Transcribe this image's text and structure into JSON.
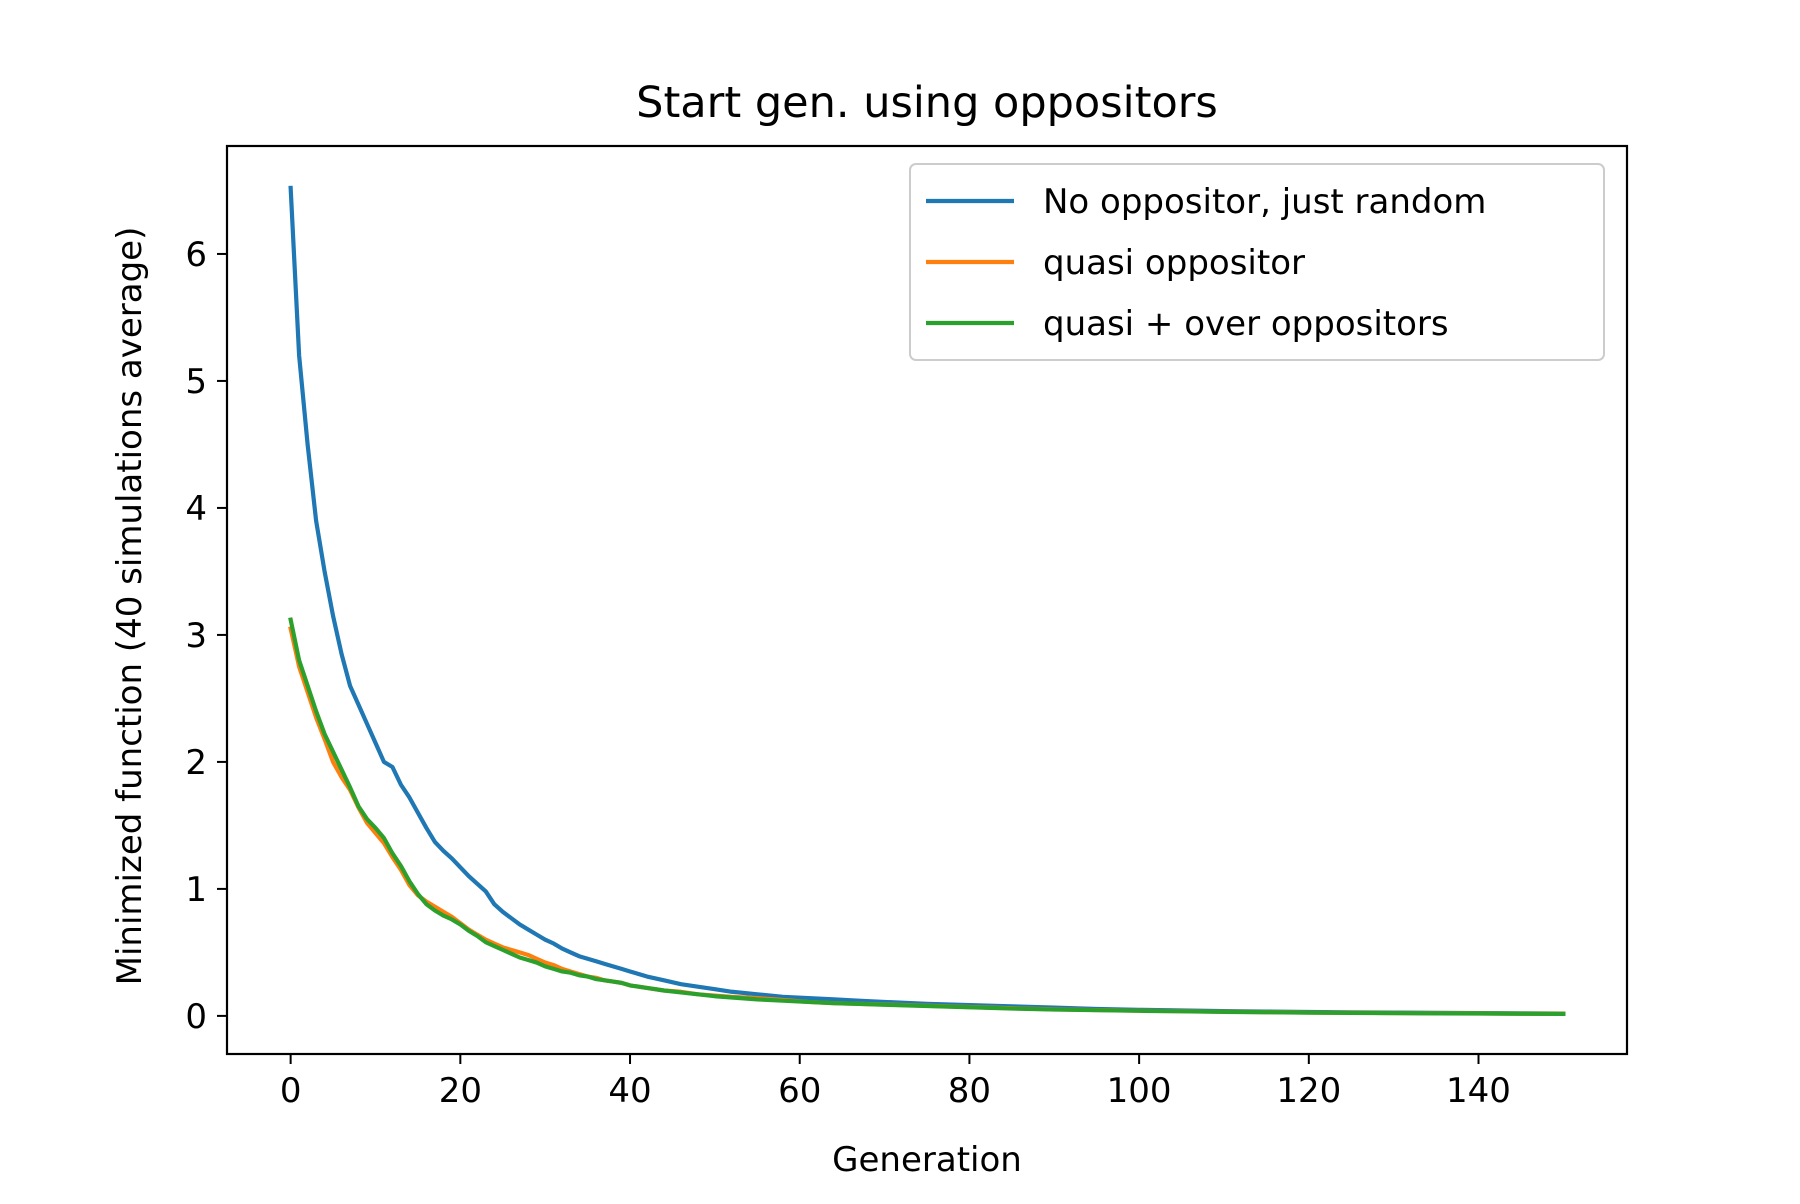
{
  "chart_data": {
    "type": "line",
    "title": "Start gen. using oppositors",
    "xlabel": "Generation",
    "ylabel": "Minimized function (40 simulations average)",
    "xlim": [
      -7.5,
      157.5
    ],
    "ylim": [
      -0.3,
      6.85
    ],
    "xticks": [
      0,
      20,
      40,
      60,
      80,
      100,
      120,
      140
    ],
    "yticks": [
      0,
      1,
      2,
      3,
      4,
      5,
      6
    ],
    "grid": false,
    "legend_position": "top-right",
    "x": [
      0,
      1,
      2,
      3,
      4,
      5,
      6,
      7,
      8,
      9,
      10,
      11,
      12,
      13,
      14,
      15,
      16,
      17,
      18,
      19,
      20,
      21,
      22,
      23,
      24,
      25,
      26,
      27,
      28,
      29,
      30,
      31,
      32,
      33,
      34,
      35,
      36,
      37,
      38,
      39,
      40,
      42,
      44,
      46,
      48,
      50,
      52,
      55,
      58,
      61,
      64,
      67,
      70,
      75,
      80,
      85,
      90,
      95,
      100,
      105,
      110,
      115,
      120,
      125,
      130,
      135,
      140,
      145,
      150
    ],
    "series": [
      {
        "name": "No oppositor, just random",
        "color": "#1f77b4",
        "values": [
          6.52,
          5.2,
          4.5,
          3.9,
          3.5,
          3.15,
          2.85,
          2.6,
          2.45,
          2.3,
          2.15,
          2.0,
          1.96,
          1.82,
          1.72,
          1.6,
          1.48,
          1.37,
          1.3,
          1.24,
          1.17,
          1.1,
          1.04,
          0.98,
          0.88,
          0.82,
          0.77,
          0.72,
          0.68,
          0.64,
          0.6,
          0.57,
          0.53,
          0.5,
          0.47,
          0.45,
          0.43,
          0.41,
          0.39,
          0.37,
          0.35,
          0.31,
          0.28,
          0.25,
          0.23,
          0.21,
          0.19,
          0.17,
          0.15,
          0.14,
          0.13,
          0.12,
          0.11,
          0.095,
          0.085,
          0.075,
          0.065,
          0.055,
          0.048,
          0.043,
          0.038,
          0.034,
          0.031,
          0.028,
          0.026,
          0.024,
          0.022,
          0.02,
          0.018
        ]
      },
      {
        "name": "quasi oppositor",
        "color": "#ff7f0e",
        "values": [
          3.05,
          2.75,
          2.55,
          2.35,
          2.18,
          2.0,
          1.88,
          1.78,
          1.64,
          1.52,
          1.44,
          1.36,
          1.25,
          1.15,
          1.03,
          0.95,
          0.9,
          0.86,
          0.82,
          0.78,
          0.73,
          0.68,
          0.64,
          0.6,
          0.57,
          0.54,
          0.52,
          0.5,
          0.48,
          0.45,
          0.42,
          0.4,
          0.37,
          0.35,
          0.33,
          0.31,
          0.3,
          0.28,
          0.27,
          0.26,
          0.24,
          0.22,
          0.2,
          0.19,
          0.17,
          0.16,
          0.15,
          0.14,
          0.125,
          0.11,
          0.1,
          0.095,
          0.09,
          0.08,
          0.07,
          0.06,
          0.052,
          0.046,
          0.041,
          0.037,
          0.033,
          0.03,
          0.027,
          0.025,
          0.023,
          0.021,
          0.02,
          0.018,
          0.017
        ]
      },
      {
        "name": "quasi + over oppositors",
        "color": "#2ca02c",
        "values": [
          3.12,
          2.8,
          2.6,
          2.4,
          2.22,
          2.08,
          1.94,
          1.8,
          1.65,
          1.55,
          1.48,
          1.4,
          1.28,
          1.18,
          1.06,
          0.96,
          0.88,
          0.83,
          0.79,
          0.76,
          0.72,
          0.67,
          0.63,
          0.58,
          0.55,
          0.52,
          0.49,
          0.46,
          0.44,
          0.42,
          0.39,
          0.37,
          0.35,
          0.34,
          0.32,
          0.31,
          0.29,
          0.28,
          0.27,
          0.26,
          0.24,
          0.22,
          0.2,
          0.185,
          0.17,
          0.155,
          0.145,
          0.13,
          0.12,
          0.11,
          0.1,
          0.095,
          0.088,
          0.078,
          0.068,
          0.058,
          0.05,
          0.045,
          0.04,
          0.036,
          0.032,
          0.029,
          0.026,
          0.024,
          0.022,
          0.02,
          0.019,
          0.017,
          0.016
        ]
      }
    ]
  }
}
